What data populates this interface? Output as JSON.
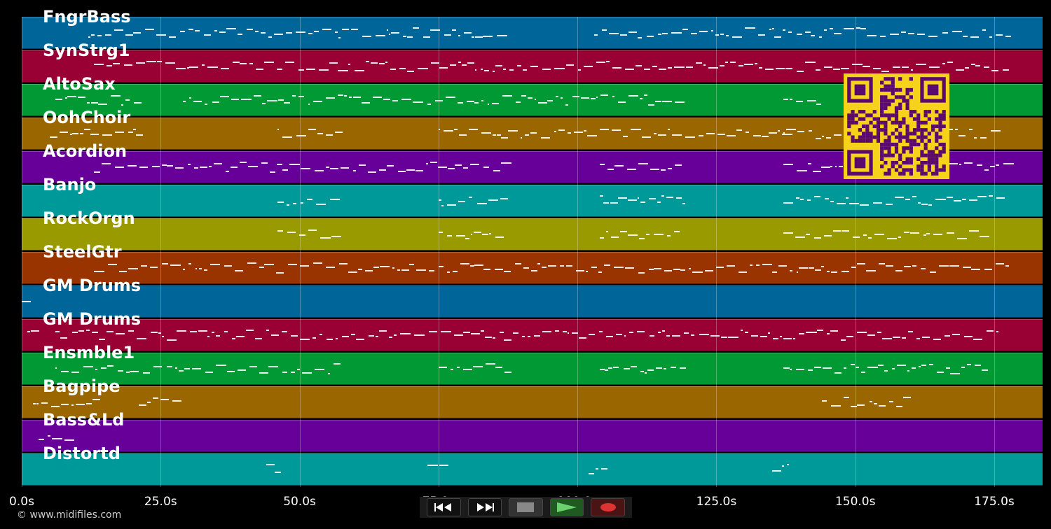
{
  "tracks": [
    {
      "label": "FngrBass",
      "color": "#006699"
    },
    {
      "label": "SynStrg1",
      "color": "#990033"
    },
    {
      "label": "AltoSax",
      "color": "#009933"
    },
    {
      "label": "OohChoir",
      "color": "#996600"
    },
    {
      "label": "Acordion",
      "color": "#660099"
    },
    {
      "label": "Banjo",
      "color": "#009999"
    },
    {
      "label": "RockOrgn",
      "color": "#999900"
    },
    {
      "label": "SteelGtr",
      "color": "#993300"
    },
    {
      "label": "GM Drums",
      "color": "#006699"
    },
    {
      "label": "GM Drums",
      "color": "#990033"
    },
    {
      "label": "Ensmble1",
      "color": "#009933"
    },
    {
      "label": "Bagpipe",
      "color": "#996600"
    },
    {
      "label": "Bass&Ld",
      "color": "#660099"
    },
    {
      "label": "Distortd",
      "color": "#009999"
    }
  ],
  "time_axis": {
    "ticks": [
      "0.0s",
      "25.0s",
      "50.0s",
      "75.0s",
      "100.0s",
      "125.0s",
      "150.0s",
      "175.0s"
    ],
    "tick_values": [
      0,
      25,
      50,
      75,
      100,
      125,
      150,
      175
    ],
    "max_seconds": 183.7
  },
  "footer": {
    "copyright": "© www.midifiles.com"
  },
  "qr": {
    "color": "#f6d21b",
    "fg": "#5a0a6e"
  },
  "transport": {
    "rewind_icon": "rewind-icon",
    "forward_icon": "fast-forward-icon",
    "stop_icon": "stop-icon",
    "play_icon": "play-icon",
    "record_icon": "record-icon"
  },
  "note_activity_seconds": [
    {
      "track": 0,
      "spans": [
        [
          12,
          87
        ],
        [
          103,
          178
        ]
      ]
    },
    {
      "track": 1,
      "spans": [
        [
          13,
          178
        ]
      ]
    },
    {
      "track": 2,
      "spans": [
        [
          6,
          21
        ],
        [
          29,
          119
        ],
        [
          137,
          143
        ]
      ]
    },
    {
      "track": 3,
      "spans": [
        [
          5,
          21
        ],
        [
          46,
          57
        ],
        [
          75,
          103
        ],
        [
          104,
          137
        ],
        [
          137,
          175
        ]
      ]
    },
    {
      "track": 4,
      "spans": [
        [
          13,
          87
        ],
        [
          104,
          119
        ],
        [
          137,
          178
        ]
      ]
    },
    {
      "track": 5,
      "spans": [
        [
          46,
          57
        ],
        [
          75,
          87
        ],
        [
          104,
          119
        ],
        [
          137,
          177
        ]
      ]
    },
    {
      "track": 6,
      "spans": [
        [
          46,
          57
        ],
        [
          75,
          87
        ],
        [
          104,
          118
        ],
        [
          137,
          173
        ]
      ]
    },
    {
      "track": 7,
      "spans": [
        [
          13,
          178
        ]
      ]
    },
    {
      "track": 8,
      "spans": [
        [
          0,
          1
        ]
      ]
    },
    {
      "track": 9,
      "spans": [
        [
          1,
          2
        ],
        [
          6,
          176
        ]
      ]
    },
    {
      "track": 10,
      "spans": [
        [
          6,
          57
        ],
        [
          75,
          87
        ],
        [
          104,
          119
        ],
        [
          137,
          173
        ]
      ]
    },
    {
      "track": 11,
      "spans": [
        [
          2,
          13
        ],
        [
          21,
          29
        ],
        [
          144,
          159
        ]
      ]
    },
    {
      "track": 12,
      "spans": [
        [
          3,
          9
        ]
      ]
    },
    {
      "track": 13,
      "spans": [
        [
          44,
          47
        ],
        [
          73,
          76
        ],
        [
          102,
          105
        ],
        [
          135,
          138
        ]
      ]
    }
  ]
}
